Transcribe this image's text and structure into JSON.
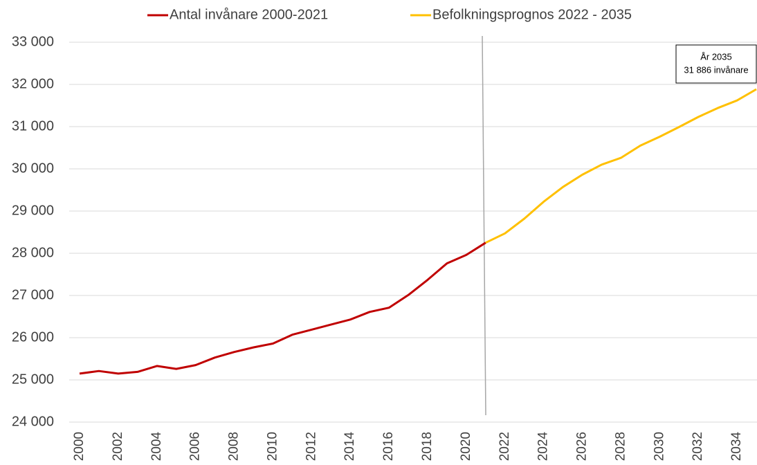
{
  "chart_data": {
    "type": "line",
    "series": [
      {
        "name": "Antal invånare 2000-2021",
        "color": "#c00000",
        "x": [
          2000,
          2001,
          2002,
          2003,
          2004,
          2005,
          2006,
          2007,
          2008,
          2009,
          2010,
          2011,
          2012,
          2013,
          2014,
          2015,
          2016,
          2017,
          2018,
          2019,
          2020,
          2021
        ],
        "values": [
          25150,
          25210,
          25150,
          25190,
          25330,
          25260,
          25350,
          25530,
          25660,
          25770,
          25860,
          26070,
          26190,
          26310,
          26430,
          26610,
          26710,
          27010,
          27370,
          27760,
          27960,
          28250
        ]
      },
      {
        "name": "Befolkningsprognos 2022 - 2035",
        "color": "#ffc000",
        "x": [
          2021,
          2022,
          2023,
          2024,
          2025,
          2026,
          2027,
          2028,
          2029,
          2030,
          2031,
          2032,
          2033,
          2034,
          2035
        ],
        "values": [
          28250,
          28470,
          28820,
          29220,
          29570,
          29860,
          30100,
          30260,
          30550,
          30760,
          30990,
          31230,
          31440,
          31620,
          31886
        ]
      }
    ],
    "xlim": [
      2000,
      2035
    ],
    "xticks": [
      2000,
      2002,
      2004,
      2006,
      2008,
      2010,
      2012,
      2014,
      2016,
      2018,
      2020,
      2022,
      2024,
      2026,
      2028,
      2030,
      2032,
      2034
    ],
    "ylim": [
      24000,
      33000
    ],
    "yticks": [
      {
        "value": 24000,
        "label": "24 000"
      },
      {
        "value": 25000,
        "label": "25 000"
      },
      {
        "value": 26000,
        "label": "26 000"
      },
      {
        "value": 27000,
        "label": "27 000"
      },
      {
        "value": 28000,
        "label": "28 000"
      },
      {
        "value": 29000,
        "label": "29 000"
      },
      {
        "value": 30000,
        "label": "30 000"
      },
      {
        "value": 31000,
        "label": "31 000"
      },
      {
        "value": 32000,
        "label": "32 000"
      },
      {
        "value": 33000,
        "label": "33 000"
      }
    ],
    "grid": true,
    "legend": "top",
    "annotation": [
      "År 2035",
      "31 886 invånare"
    ]
  }
}
